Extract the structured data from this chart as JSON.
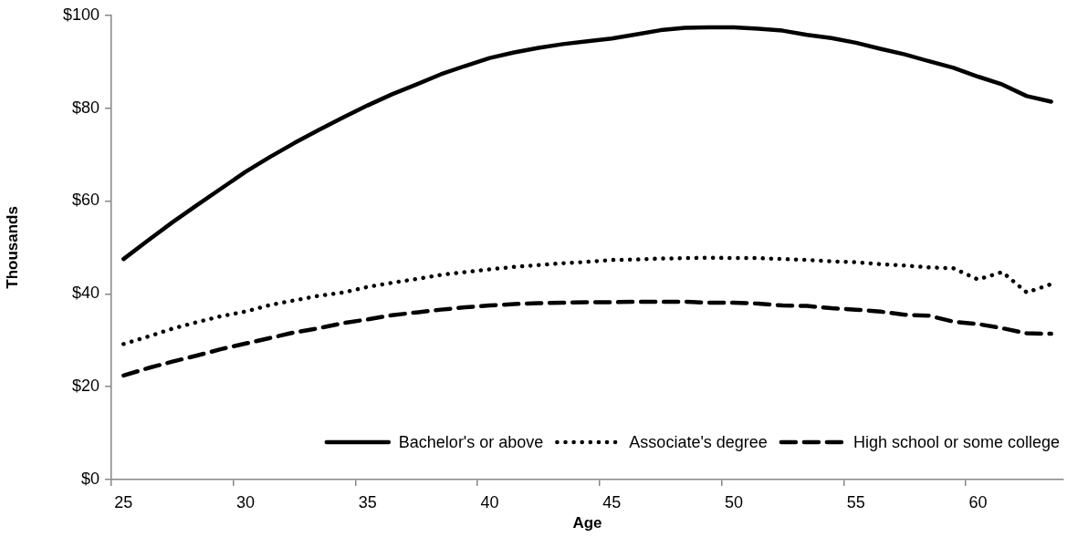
{
  "chart_data": {
    "type": "line",
    "xlabel": "Age",
    "ylabel": "Thousands",
    "categories": [
      "25",
      null,
      null,
      null,
      null,
      "30",
      null,
      null,
      null,
      null,
      "35",
      null,
      null,
      null,
      null,
      "40",
      null,
      null,
      null,
      null,
      "45",
      null,
      null,
      null,
      null,
      "50",
      null,
      null,
      null,
      null,
      "55",
      null,
      null,
      null,
      null,
      "60",
      null,
      null,
      null
    ],
    "series": [
      {
        "name": "Bachelor's or above",
        "color": "#000000",
        "line_style": "solid",
        "values": [
          47.5,
          51.5,
          55.4,
          59.1,
          62.7,
          66.3,
          69.5,
          72.5,
          75.3,
          78.0,
          80.6,
          83.0,
          85.1,
          87.3,
          89.1,
          90.8,
          92.0,
          93.0,
          93.8,
          94.4,
          95.0,
          95.9,
          96.8,
          97.3,
          97.4,
          97.4,
          97.1,
          96.7,
          95.8,
          95.1,
          94.1,
          92.8,
          91.6,
          90.1,
          88.7,
          86.8,
          85.1,
          82.6,
          81.4
        ]
      },
      {
        "name": "Associate's degree",
        "color": "#000000",
        "line_style": "dotted",
        "values": [
          29.2,
          30.8,
          32.5,
          33.9,
          35.2,
          36.2,
          37.6,
          38.6,
          39.6,
          40.3,
          41.5,
          42.4,
          43.2,
          44.1,
          44.7,
          45.3,
          45.8,
          46.2,
          46.6,
          46.9,
          47.3,
          47.4,
          47.6,
          47.7,
          47.8,
          47.7,
          47.7,
          47.5,
          47.3,
          47.0,
          46.8,
          46.4,
          46.1,
          45.7,
          45.5,
          43.1,
          44.7,
          40.3,
          42.1
        ]
      },
      {
        "name": "High school or some college",
        "color": "#000000",
        "line_style": "dashed",
        "values": [
          22.4,
          24.0,
          25.4,
          26.7,
          28.1,
          29.3,
          30.5,
          31.7,
          32.6,
          33.7,
          34.5,
          35.4,
          36.0,
          36.6,
          37.1,
          37.5,
          37.8,
          38.0,
          38.1,
          38.2,
          38.2,
          38.3,
          38.3,
          38.3,
          38.1,
          38.1,
          37.9,
          37.5,
          37.4,
          36.9,
          36.6,
          36.2,
          35.5,
          35.3,
          34.0,
          33.5,
          32.6,
          31.5,
          31.4
        ]
      }
    ],
    "ylim": [
      0,
      100
    ],
    "yticks": [
      {
        "value": 0,
        "label": "$0"
      },
      {
        "value": 20,
        "label": "$20"
      },
      {
        "value": 40,
        "label": "$40"
      },
      {
        "value": 60,
        "label": "$60"
      },
      {
        "value": 80,
        "label": "$80"
      },
      {
        "value": 100,
        "label": "$100"
      }
    ],
    "grid": false,
    "legend": "bottom",
    "marker": "none"
  }
}
